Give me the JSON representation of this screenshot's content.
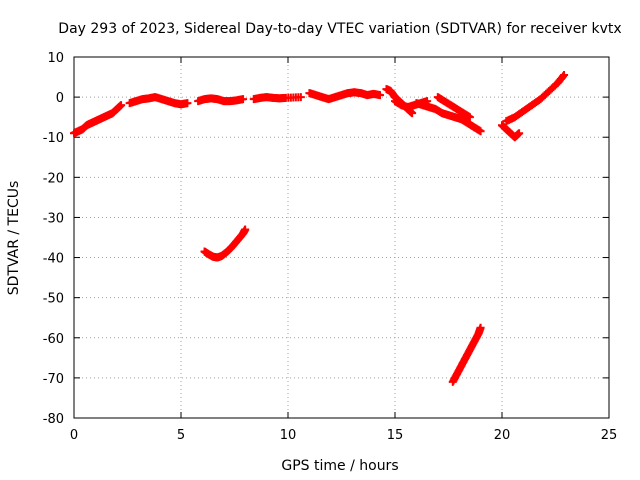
{
  "chart_data": {
    "type": "scatter",
    "title": "Day 293 of 2023, Sidereal Day-to-day VTEC variation (SDTVAR) for receiver kvtx",
    "xlabel": "GPS time / hours",
    "ylabel": "SDTVAR / TECUs",
    "xlim": [
      0,
      25
    ],
    "ylim": [
      -80,
      10
    ],
    "xticks": [
      0,
      5,
      10,
      15,
      20,
      25
    ],
    "yticks": [
      10,
      0,
      -10,
      -20,
      -30,
      -40,
      -50,
      -60,
      -70,
      -80
    ],
    "grid": true,
    "marker": "+",
    "color": "#ff0000",
    "series": [
      {
        "name": "arc-1",
        "x": [
          0.0,
          0.2,
          0.4,
          0.6,
          0.8,
          1.0,
          1.2,
          1.4,
          1.6,
          1.8,
          2.0,
          2.2
        ],
        "y": [
          -9,
          -8.5,
          -8,
          -7,
          -6.5,
          -6,
          -5.5,
          -5,
          -4.5,
          -4,
          -3,
          -2
        ]
      },
      {
        "name": "arc-2",
        "x": [
          2.6,
          2.9,
          3.2,
          3.5,
          3.8,
          4.1,
          4.4,
          4.7,
          5.0,
          5.3
        ],
        "y": [
          -1.5,
          -1,
          -0.5,
          -0.3,
          0,
          -0.5,
          -1,
          -1.5,
          -1.8,
          -1.5
        ]
      },
      {
        "name": "arc-3",
        "x": [
          5.8,
          6.1,
          6.4,
          6.7,
          7.0,
          7.3,
          7.6,
          7.9
        ],
        "y": [
          -1,
          -0.5,
          -0.3,
          -0.5,
          -1,
          -1,
          -0.8,
          -0.5
        ]
      },
      {
        "name": "arc-4",
        "x": [
          8.4,
          8.7,
          9.0,
          9.3,
          9.6,
          9.9,
          10.6
        ],
        "y": [
          -0.5,
          -0.2,
          0,
          -0.2,
          -0.3,
          -0.2,
          0
        ]
      },
      {
        "name": "arc-5",
        "x": [
          11.0,
          11.3,
          11.6,
          11.9,
          12.2,
          12.5,
          12.8,
          13.1,
          13.4,
          13.7,
          14.0,
          14.3
        ],
        "y": [
          1,
          0.5,
          0,
          -0.5,
          0,
          0.5,
          1,
          1.2,
          1,
          0.5,
          0.8,
          0.5
        ]
      },
      {
        "name": "arc-6",
        "x": [
          14.6,
          14.8,
          15.0,
          15.2,
          15.4,
          15.6,
          15.8
        ],
        "y": [
          2,
          1.5,
          0,
          -1,
          -2,
          -3,
          -4
        ]
      },
      {
        "name": "arc-7",
        "x": [
          15.0,
          15.3,
          15.6,
          15.9,
          16.2,
          16.5
        ],
        "y": [
          -1,
          -2,
          -2.5,
          -2,
          -1.5,
          -1
        ]
      },
      {
        "name": "arc-8",
        "x": [
          16.0,
          16.3,
          16.6,
          16.9,
          17.2,
          17.5,
          17.8,
          18.1,
          18.4,
          18.7,
          19.0
        ],
        "y": [
          -1.5,
          -2,
          -2.5,
          -3,
          -4,
          -4.5,
          -5,
          -5.5,
          -6.5,
          -7.5,
          -8.5
        ]
      },
      {
        "name": "arc-9",
        "x": [
          17.0,
          17.3,
          17.6,
          17.9,
          18.2,
          18.5
        ],
        "y": [
          0,
          -1,
          -2,
          -3,
          -4,
          -5
        ]
      },
      {
        "name": "arc-10",
        "x": [
          20.0,
          20.2,
          20.4,
          20.6,
          20.8
        ],
        "y": [
          -7,
          -8,
          -9,
          -10,
          -9
        ]
      },
      {
        "name": "arc-11",
        "x": [
          20.2,
          20.6,
          21.0,
          21.4,
          21.8,
          22.2,
          22.6,
          22.9
        ],
        "y": [
          -6,
          -5,
          -3.5,
          -2,
          -0.5,
          1.5,
          3.5,
          5.5
        ]
      },
      {
        "name": "arc-12",
        "x": [
          6.1,
          6.3,
          6.5,
          6.7,
          6.9,
          7.1,
          7.3,
          7.5,
          7.7,
          7.9,
          8.0
        ],
        "y": [
          -38.5,
          -39.2,
          -39.8,
          -40,
          -39.6,
          -38.8,
          -37.8,
          -36.6,
          -35.3,
          -34,
          -33
        ]
      },
      {
        "name": "arc-13",
        "x": [
          17.7,
          17.9,
          18.1,
          18.3,
          18.5,
          18.7,
          18.9,
          19.0
        ],
        "y": [
          -71,
          -69,
          -67,
          -65,
          -63,
          -61,
          -59,
          -57.5
        ]
      }
    ]
  }
}
